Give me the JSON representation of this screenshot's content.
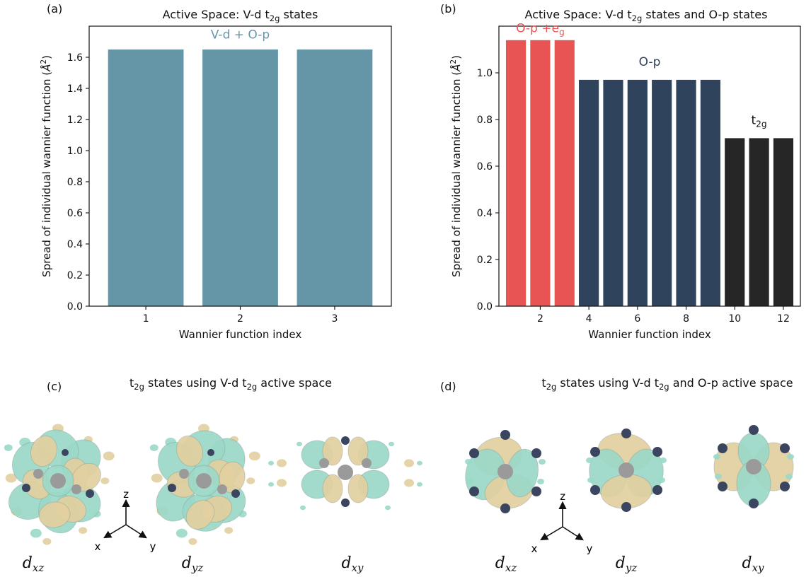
{
  "chart_data": [
    {
      "panel": "(a)",
      "type": "bar",
      "title_parts": [
        "Active Space: V-d t",
        "2g",
        " states"
      ],
      "xlabel": "Wannier function index",
      "ylabel_parts": [
        "Spread of individual wannier function (",
        "Å",
        "2",
        ")"
      ],
      "x": [
        1,
        2,
        3
      ],
      "values": [
        1.65,
        1.65,
        1.65
      ],
      "colors": [
        "#6596a8",
        "#6596a8",
        "#6596a8"
      ],
      "xlim": [
        0.4,
        3.6
      ],
      "ylim": [
        0,
        1.8
      ],
      "yticks": [
        0.0,
        0.2,
        0.4,
        0.6,
        0.8,
        1.0,
        1.2,
        1.4,
        1.6
      ],
      "xticks": [
        1,
        2,
        3
      ],
      "annotations": [
        {
          "parts": [
            "V-d + O-p"
          ],
          "x": 2,
          "y": 1.72,
          "color": "#6596a8"
        }
      ]
    },
    {
      "panel": "(b)",
      "type": "bar",
      "title_parts": [
        "Active Space: V-d t",
        "2g",
        " states and O-p states"
      ],
      "xlabel": "Wannier function index",
      "ylabel_parts": [
        "Spread of individual wannier function (",
        "Å",
        "2",
        ")"
      ],
      "x": [
        1,
        2,
        3,
        4,
        5,
        6,
        7,
        8,
        9,
        10,
        11,
        12
      ],
      "values": [
        1.14,
        1.14,
        1.14,
        0.97,
        0.97,
        0.97,
        0.97,
        0.97,
        0.97,
        0.72,
        0.72,
        0.72
      ],
      "colors": [
        "#e85454",
        "#e85454",
        "#e85454",
        "#2f445c",
        "#2f445c",
        "#2f445c",
        "#2f445c",
        "#2f445c",
        "#2f445c",
        "#262626",
        "#262626",
        "#262626"
      ],
      "xlim": [
        0.3,
        12.7
      ],
      "ylim": [
        0,
        1.2
      ],
      "yticks": [
        0.0,
        0.2,
        0.4,
        0.6,
        0.8,
        1.0
      ],
      "xticks": [
        2,
        4,
        6,
        8,
        10,
        12
      ],
      "annotations": [
        {
          "parts": [
            "O-p +e",
            "g"
          ],
          "x": 2,
          "y": 1.175,
          "color": "#e85454"
        },
        {
          "parts": [
            "O-p"
          ],
          "x": 6.5,
          "y": 1.03,
          "color": "#2f445c"
        },
        {
          "parts": [
            "t",
            "2g"
          ],
          "x": 11,
          "y": 0.78,
          "color": "#111111"
        }
      ]
    }
  ],
  "lower": {
    "c": {
      "label": "(c)",
      "title_parts": [
        "t",
        "2g",
        " states using V-d t",
        "2g",
        " active space"
      ],
      "orbital_labels": [
        "d",
        "xz",
        "d",
        "yz",
        "d",
        "xy"
      ],
      "axes": [
        "z",
        "x",
        "y"
      ]
    },
    "d": {
      "label": "(d)",
      "title_parts": [
        "t",
        "2g",
        " states using V-d t",
        "2g",
        " and O-p active space"
      ],
      "orbital_labels": [
        "d",
        "xz",
        "d",
        "yz",
        "d",
        "xy"
      ],
      "axes": [
        "z",
        "x",
        "y"
      ]
    }
  },
  "colors": {
    "lobe_green": "#9ad8c8",
    "lobe_tan": "#e2cfa0",
    "atom": "#3b4560",
    "center": "#9a9a9a"
  }
}
